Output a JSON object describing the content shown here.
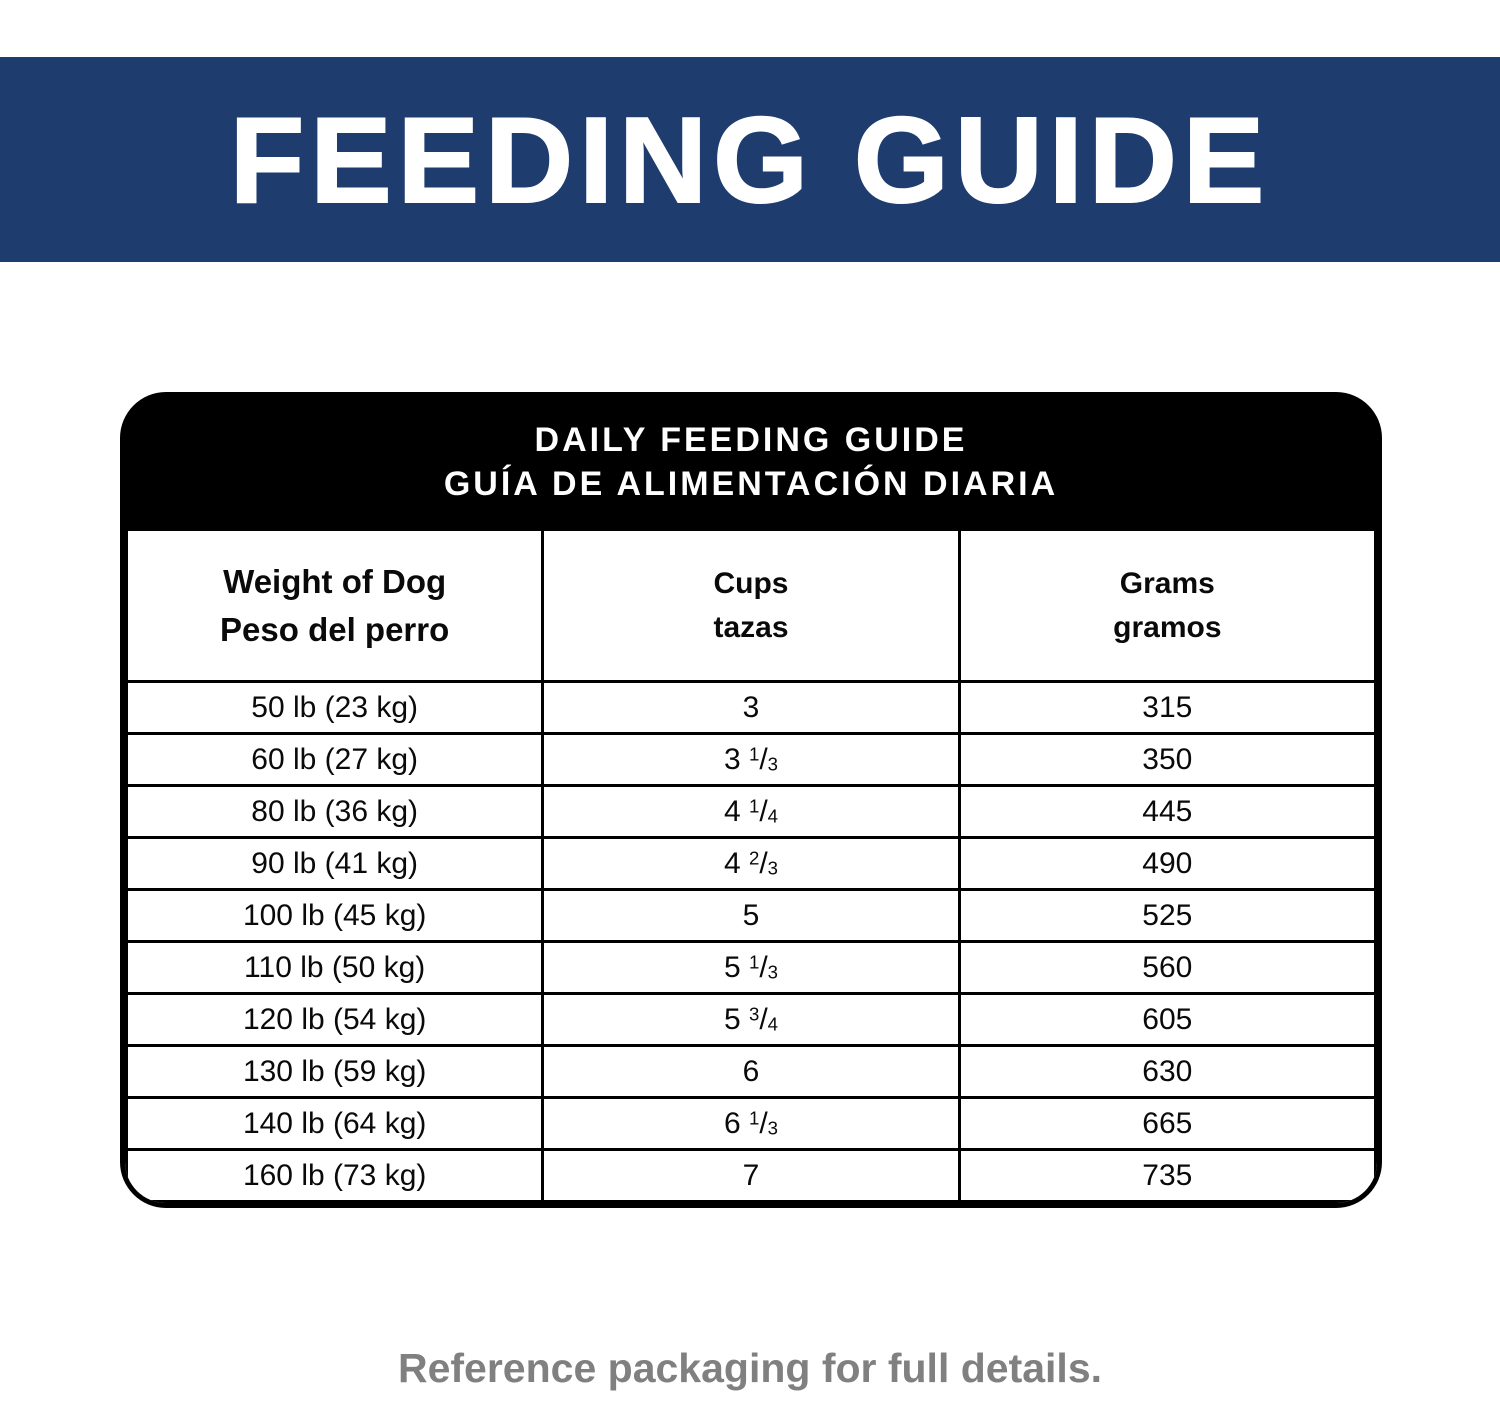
{
  "banner": {
    "title": "FEEDING GUIDE",
    "color": "#1e3c6e",
    "text_color": "#ffffff"
  },
  "card": {
    "title_en": "DAILY FEEDING GUIDE",
    "title_es": "GUÍA DE ALIMENTACIÓN DIARIA",
    "header_bg": "#000000",
    "header_text_color": "#ffffff"
  },
  "chart_data": {
    "type": "table",
    "title": "DAILY FEEDING GUIDE",
    "title_es": "GUÍA DE ALIMENTACIÓN DIARIA",
    "columns": [
      {
        "label_en": "Weight of Dog",
        "label_es": "Peso del perro"
      },
      {
        "label_en": "Cups",
        "label_es": "tazas"
      },
      {
        "label_en": "Grams",
        "label_es": "gramos"
      }
    ],
    "rows": [
      [
        "50 lb (23 kg)",
        "3",
        "315"
      ],
      [
        "60 lb (27 kg)",
        "3 1/3",
        "350"
      ],
      [
        "80 lb (36 kg)",
        "4 1/4",
        "445"
      ],
      [
        "90 lb (41 kg)",
        "4 2/3",
        "490"
      ],
      [
        "100 lb (45 kg)",
        "5",
        "525"
      ],
      [
        "110 lb (50 kg)",
        "5 1/3",
        "560"
      ],
      [
        "120 lb (54 kg)",
        "5 3/4",
        "605"
      ],
      [
        "130 lb (59 kg)",
        "6",
        "630"
      ],
      [
        "140 lb (64 kg)",
        "6 1/3",
        "665"
      ],
      [
        "160 lb (73 kg)",
        "7",
        "735"
      ]
    ]
  },
  "footer": {
    "note": "Reference packaging for full details.",
    "text_color": "#808080"
  }
}
